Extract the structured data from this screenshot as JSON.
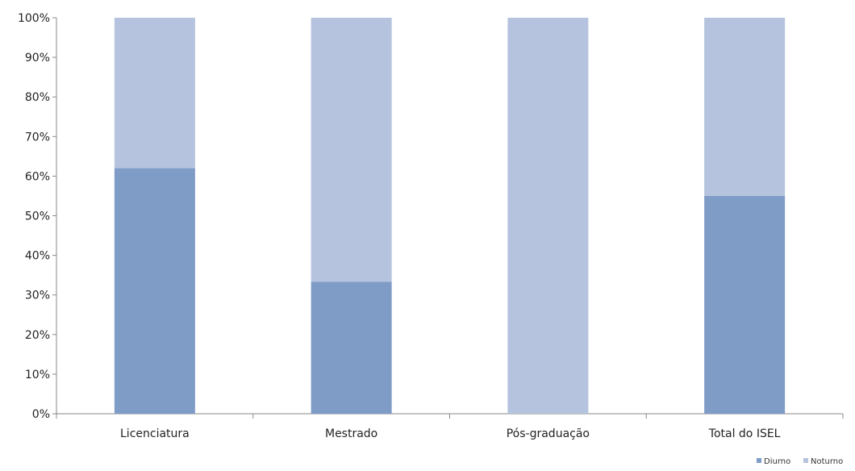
{
  "chart_data": {
    "type": "bar",
    "stacked": true,
    "categories": [
      "Licenciatura",
      "Mestrado",
      "Pós-graduação",
      "Total do ISEL"
    ],
    "series": [
      {
        "name": "Diurno",
        "values": [
          62,
          33.3,
          0,
          55
        ],
        "color": "#7f9cc7"
      },
      {
        "name": "Noturno",
        "values": [
          38,
          66.7,
          100,
          45
        ],
        "color": "#b5c3de"
      }
    ],
    "yticks": [
      "0%",
      "10%",
      "20%",
      "30%",
      "40%",
      "50%",
      "60%",
      "70%",
      "80%",
      "90%",
      "100%"
    ],
    "ylim": [
      0,
      100
    ],
    "legend_position": "bottom-right",
    "grid": false
  }
}
